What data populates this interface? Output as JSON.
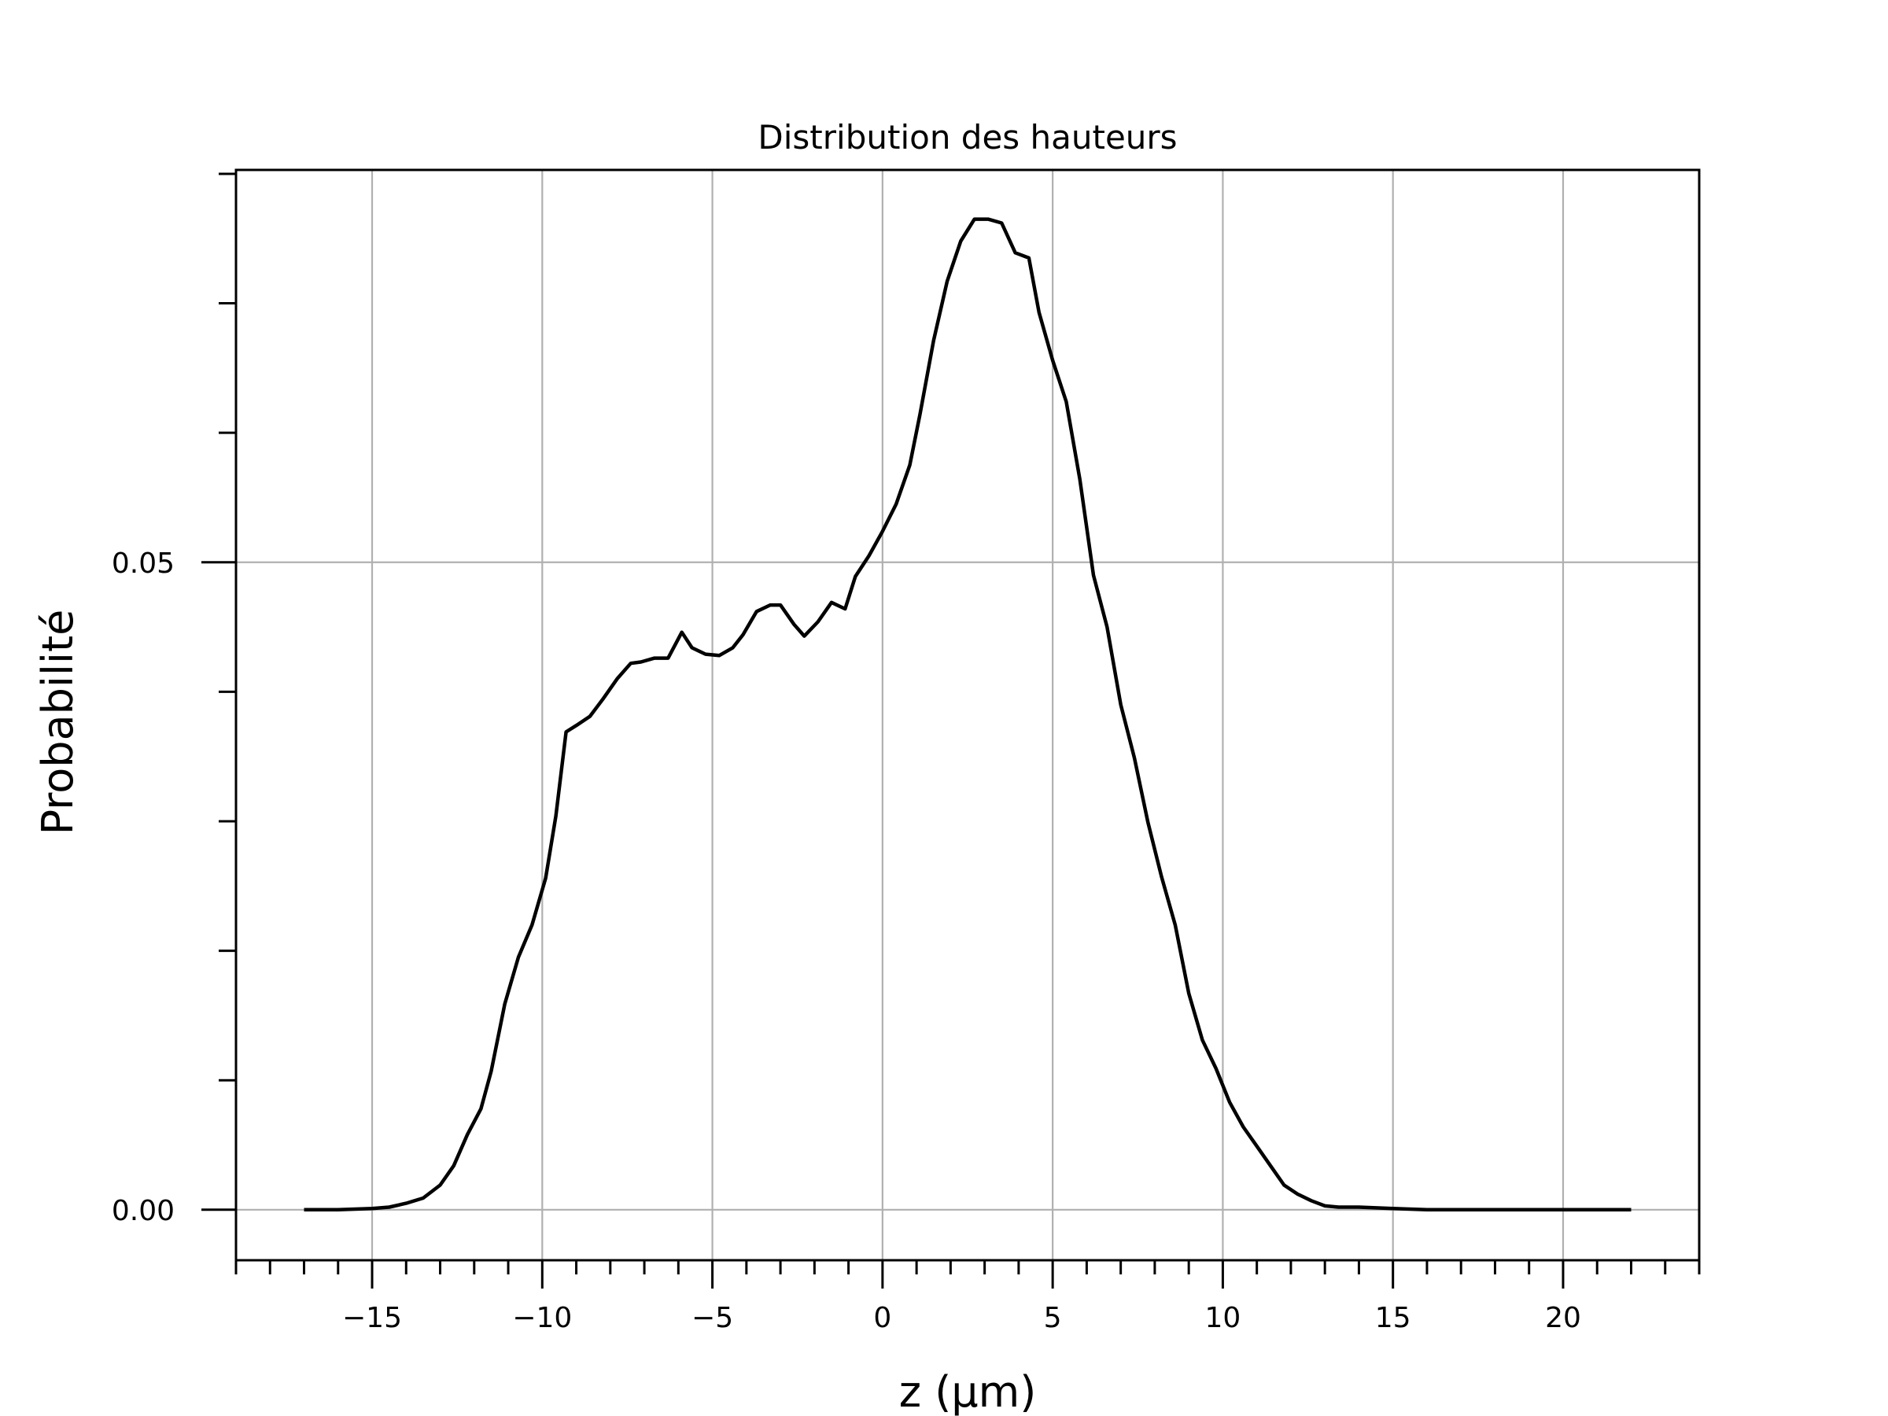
{
  "chart_data": {
    "type": "line",
    "title": "Distribution des hauteurs",
    "xlabel": "z (µm)",
    "ylabel": "Probabilité",
    "xlim": [
      -19,
      24
    ],
    "ylim": [
      -0.0039,
      0.0803
    ],
    "x_ticks": [
      -15,
      -10,
      -5,
      0,
      5,
      10,
      15,
      20
    ],
    "x_tick_labels": [
      "−15",
      "−10",
      "−5",
      "0",
      "5",
      "10",
      "15",
      "20"
    ],
    "x_minor_step": 1,
    "y_ticks": [
      0.0,
      0.05
    ],
    "y_tick_labels": [
      "0.00",
      "0.05"
    ],
    "y_minor_ticks": [
      0.01,
      0.02,
      0.03,
      0.04,
      0.06,
      0.07,
      0.08
    ],
    "grid": true,
    "line_color": "#000000",
    "grid_color": "#b0b0b0",
    "series": [
      {
        "x": [
          -17.0,
          -16.0,
          -15.0,
          -14.5,
          -14.0,
          -13.5,
          -13.0,
          -12.6,
          -12.2,
          -11.8,
          -11.5,
          -11.1,
          -10.7,
          -10.3,
          -9.9,
          -9.6,
          -9.3,
          -9.0,
          -8.6,
          -8.2,
          -7.8,
          -7.4,
          -7.1,
          -6.7,
          -6.3,
          -5.9,
          -5.6,
          -5.2,
          -4.8,
          -4.4,
          -4.1,
          -3.7,
          -3.3,
          -3.0,
          -2.6,
          -2.3,
          -1.9,
          -1.5,
          -1.1,
          -0.8,
          -0.4,
          0.0,
          0.4,
          0.8,
          1.1,
          1.5,
          1.9,
          2.3,
          2.7,
          3.1,
          3.5,
          3.9,
          4.3,
          4.6,
          5.0,
          5.4,
          5.8,
          6.2,
          6.6,
          7.0,
          7.4,
          7.8,
          8.2,
          8.6,
          9.0,
          9.4,
          9.8,
          10.2,
          10.6,
          11.0,
          11.4,
          11.8,
          12.2,
          12.6,
          13.0,
          13.4,
          14.0,
          15.0,
          16.0,
          17.0,
          18.0,
          19.0,
          20.0,
          21.0,
          22.0
        ],
        "y": [
          0.0,
          0.0,
          0.0001,
          0.0002,
          0.0005,
          0.0009,
          0.0019,
          0.0034,
          0.0058,
          0.0078,
          0.0107,
          0.0159,
          0.0195,
          0.022,
          0.0256,
          0.0304,
          0.0369,
          0.0374,
          0.0381,
          0.0395,
          0.041,
          0.0422,
          0.0423,
          0.0426,
          0.0426,
          0.0446,
          0.0434,
          0.0429,
          0.0428,
          0.0434,
          0.0444,
          0.0462,
          0.0467,
          0.0467,
          0.0452,
          0.0443,
          0.0454,
          0.0469,
          0.0464,
          0.0489,
          0.0505,
          0.0524,
          0.0545,
          0.0575,
          0.0614,
          0.0671,
          0.0717,
          0.0748,
          0.0765,
          0.0765,
          0.0762,
          0.0739,
          0.0735,
          0.0693,
          0.0656,
          0.0624,
          0.0564,
          0.049,
          0.045,
          0.039,
          0.0349,
          0.0299,
          0.0257,
          0.022,
          0.0167,
          0.0131,
          0.0109,
          0.0083,
          0.0064,
          0.0049,
          0.0034,
          0.0019,
          0.0012,
          0.0007,
          0.0003,
          0.0002,
          0.0002,
          0.0001,
          0.0,
          0.0,
          0.0,
          0.0,
          0.0,
          0.0,
          0.0
        ]
      }
    ]
  }
}
